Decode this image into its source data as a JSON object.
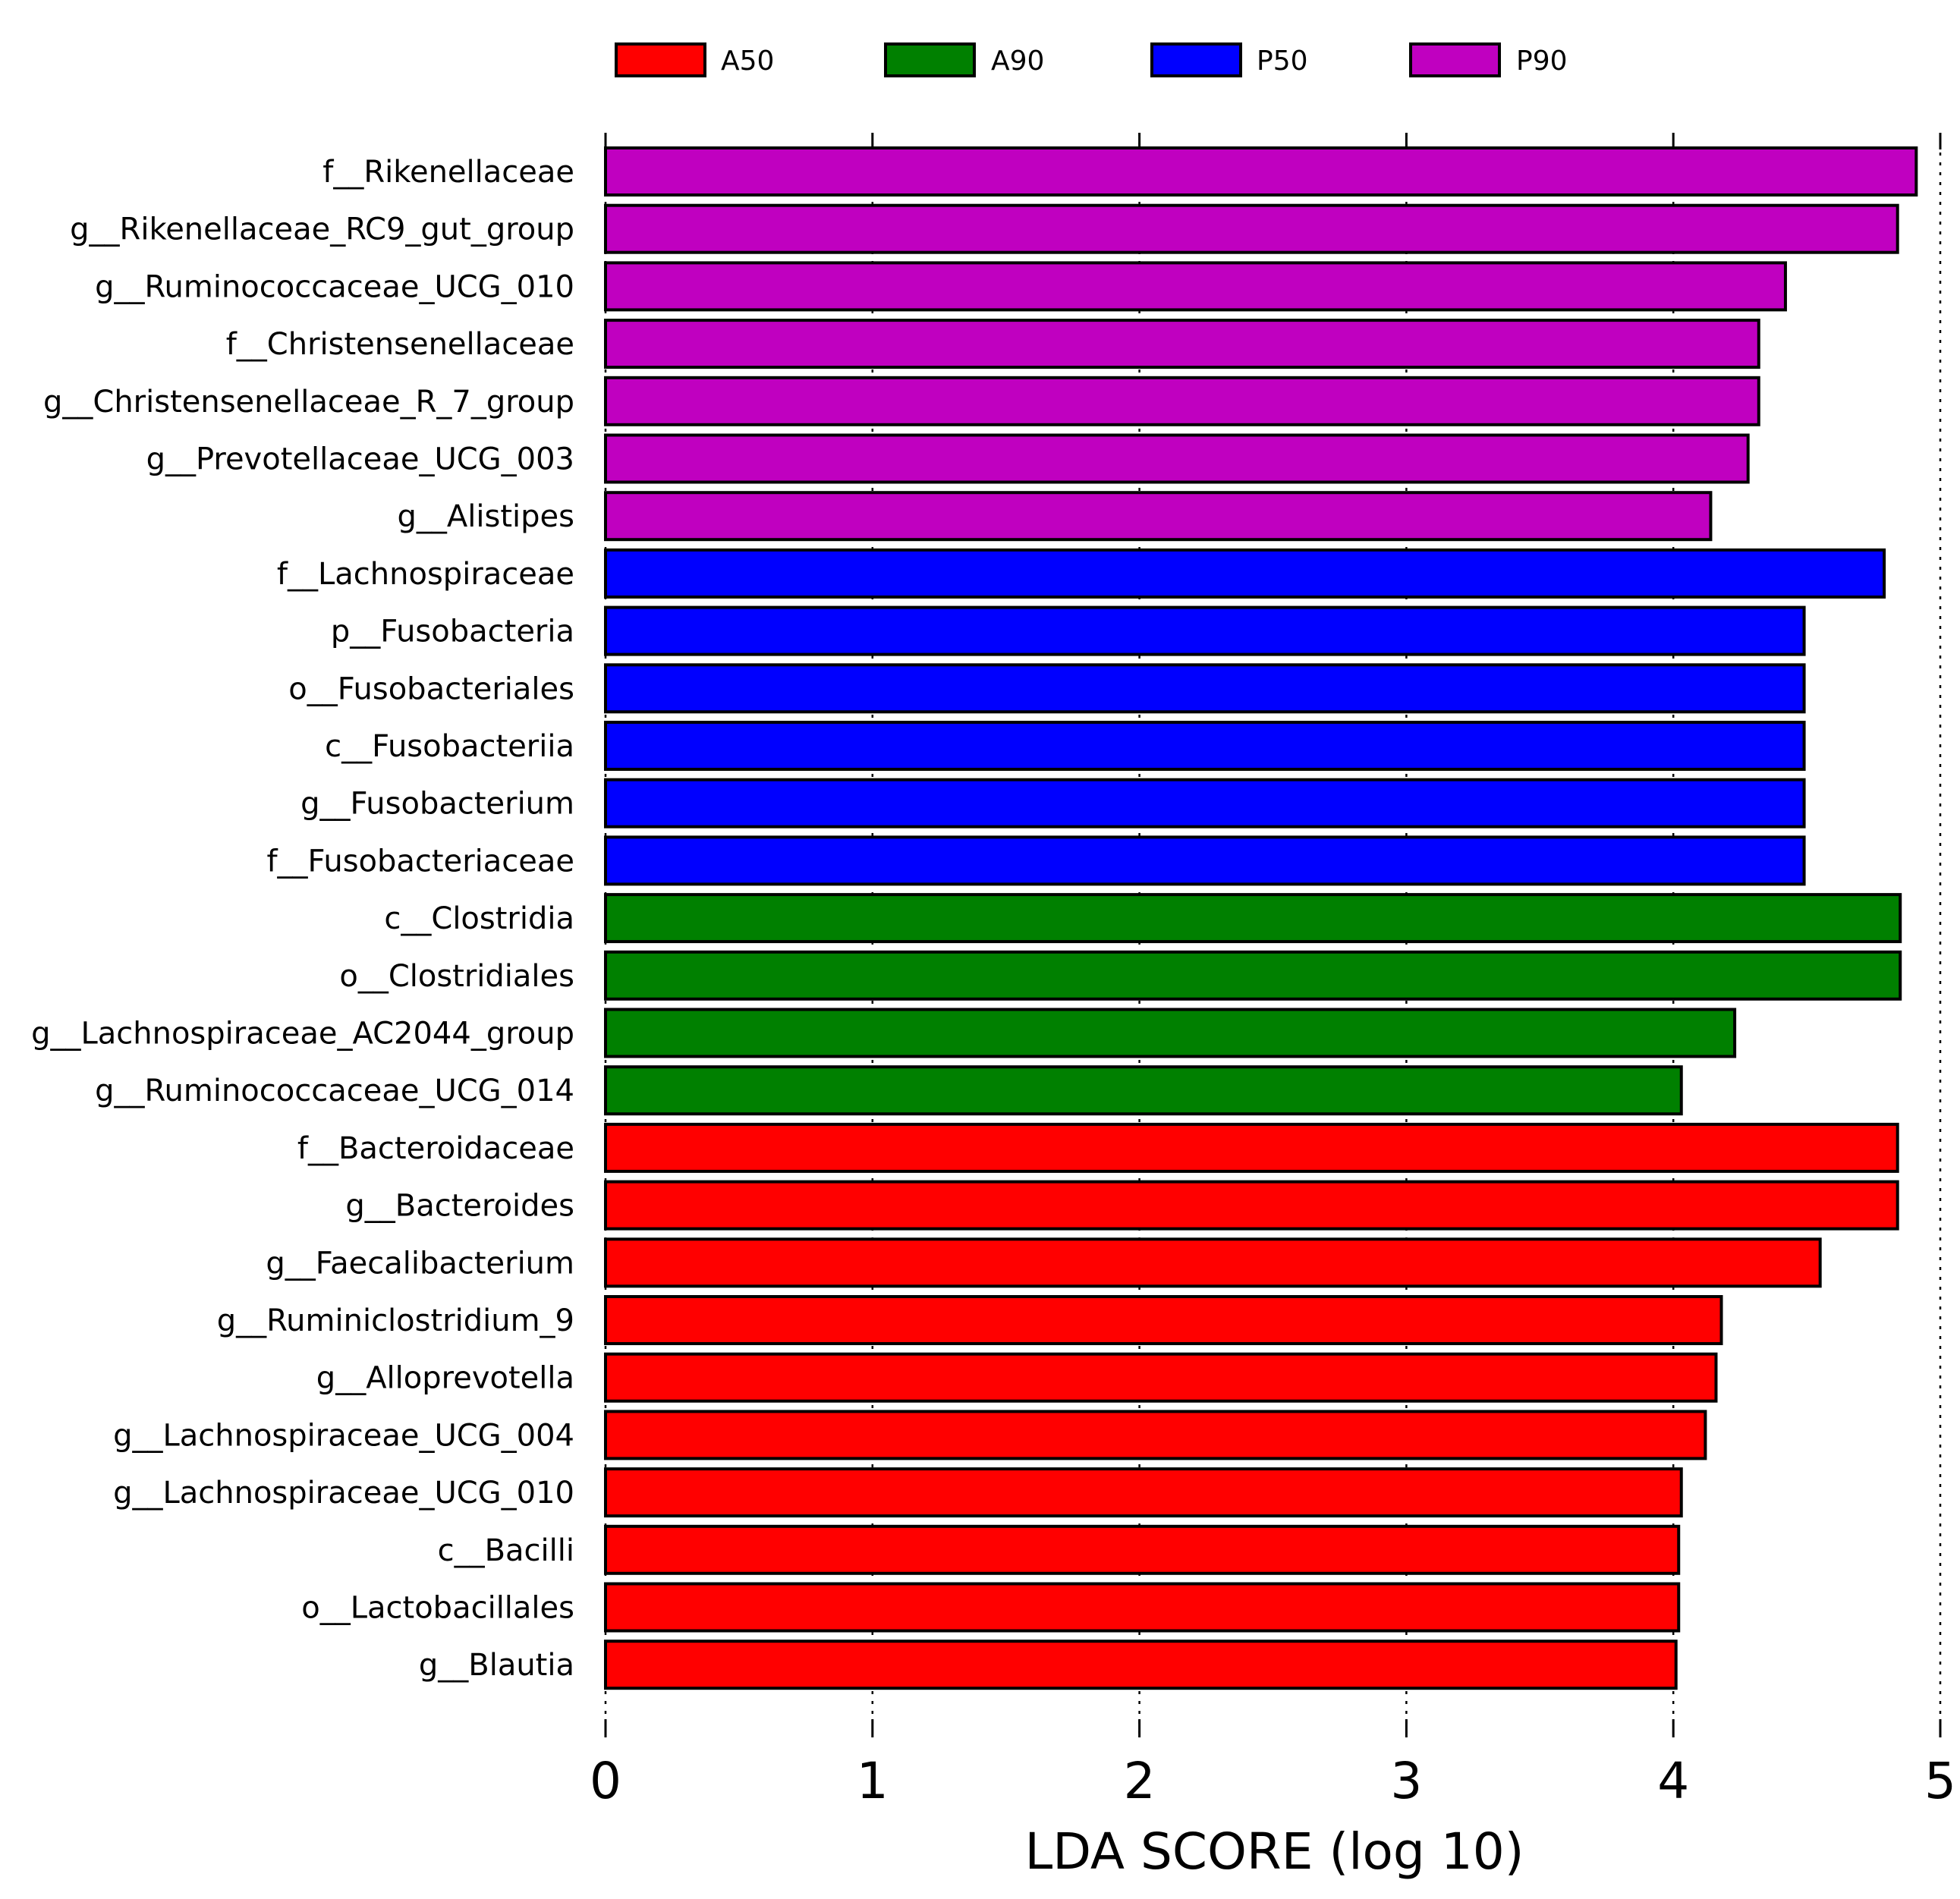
{
  "chart_data": {
    "type": "bar",
    "orientation": "horizontal",
    "title": "",
    "xlabel": "LDA SCORE (log 10)",
    "ylabel": "",
    "xlim": [
      0,
      5
    ],
    "xticks": [
      "0",
      "1",
      "2",
      "3",
      "4",
      "5"
    ],
    "grid": "vertical dotted",
    "legend_position": "top",
    "legend": [
      {
        "name": "A50",
        "color": "#ff0000"
      },
      {
        "name": "A90",
        "color": "#008000"
      },
      {
        "name": "P50",
        "color": "#0000ff"
      },
      {
        "name": "P90",
        "color": "#c000c0"
      }
    ],
    "bars": [
      {
        "label": "f__Rikenellaceae",
        "value": 4.91,
        "group": "P90"
      },
      {
        "label": "g__Rikenellaceae_RC9_gut_group",
        "value": 4.84,
        "group": "P90"
      },
      {
        "label": "g__Ruminococcaceae_UCG_010",
        "value": 4.42,
        "group": "P90"
      },
      {
        "label": "f__Christensenellaceae",
        "value": 4.32,
        "group": "P90"
      },
      {
        "label": "g__Christensenellaceae_R_7_group",
        "value": 4.32,
        "group": "P90"
      },
      {
        "label": "g__Prevotellaceae_UCG_003",
        "value": 4.28,
        "group": "P90"
      },
      {
        "label": "g__Alistipes",
        "value": 4.14,
        "group": "P90"
      },
      {
        "label": "f__Lachnospiraceae",
        "value": 4.79,
        "group": "P50"
      },
      {
        "label": "p__Fusobacteria",
        "value": 4.49,
        "group": "P50"
      },
      {
        "label": "o__Fusobacteriales",
        "value": 4.49,
        "group": "P50"
      },
      {
        "label": "c__Fusobacteriia",
        "value": 4.49,
        "group": "P50"
      },
      {
        "label": "g__Fusobacterium",
        "value": 4.49,
        "group": "P50"
      },
      {
        "label": "f__Fusobacteriaceae",
        "value": 4.49,
        "group": "P50"
      },
      {
        "label": "c__Clostridia",
        "value": 4.85,
        "group": "A90"
      },
      {
        "label": "o__Clostridiales",
        "value": 4.85,
        "group": "A90"
      },
      {
        "label": "g__Lachnospiraceae_AC2044_group",
        "value": 4.23,
        "group": "A90"
      },
      {
        "label": "g__Ruminococcaceae_UCG_014",
        "value": 4.03,
        "group": "A90"
      },
      {
        "label": "f__Bacteroidaceae",
        "value": 4.84,
        "group": "A50"
      },
      {
        "label": "g__Bacteroides",
        "value": 4.84,
        "group": "A50"
      },
      {
        "label": "g__Faecalibacterium",
        "value": 4.55,
        "group": "A50"
      },
      {
        "label": "g__Ruminiclostridium_9",
        "value": 4.18,
        "group": "A50"
      },
      {
        "label": "g__Alloprevotella",
        "value": 4.16,
        "group": "A50"
      },
      {
        "label": "g__Lachnospiraceae_UCG_004",
        "value": 4.12,
        "group": "A50"
      },
      {
        "label": "g__Lachnospiraceae_UCG_010",
        "value": 4.03,
        "group": "A50"
      },
      {
        "label": "c__Bacilli",
        "value": 4.02,
        "group": "A50"
      },
      {
        "label": "o__Lactobacillales",
        "value": 4.02,
        "group": "A50"
      },
      {
        "label": "g__Blautia",
        "value": 4.01,
        "group": "A50"
      }
    ]
  }
}
